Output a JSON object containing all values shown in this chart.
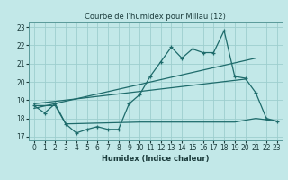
{
  "title": "Courbe de l'humidex pour Millau (12)",
  "xlabel": "Humidex (Indice chaleur)",
  "bg_color": "#c2e8e8",
  "grid_color": "#9ecece",
  "line_color": "#1e6b6b",
  "xlim": [
    -0.5,
    23.5
  ],
  "ylim": [
    16.8,
    23.3
  ],
  "yticks": [
    17,
    18,
    19,
    20,
    21,
    22,
    23
  ],
  "xticks": [
    0,
    1,
    2,
    3,
    4,
    5,
    6,
    7,
    8,
    9,
    10,
    11,
    12,
    13,
    14,
    15,
    16,
    17,
    18,
    19,
    20,
    21,
    22,
    23
  ],
  "main_line_x": [
    0,
    1,
    2,
    3,
    4,
    5,
    6,
    7,
    8,
    9,
    10,
    11,
    12,
    13,
    14,
    15,
    16,
    17,
    18,
    19,
    20,
    21,
    22,
    23
  ],
  "main_line_y": [
    18.7,
    18.3,
    18.8,
    17.7,
    17.2,
    17.4,
    17.55,
    17.4,
    17.4,
    18.8,
    19.3,
    20.3,
    21.1,
    21.9,
    21.3,
    21.8,
    21.6,
    21.6,
    22.8,
    20.3,
    20.2,
    19.4,
    18.0,
    17.85
  ],
  "trend1_x": [
    0,
    21
  ],
  "trend1_y": [
    18.55,
    21.3
  ],
  "trend2_x": [
    0,
    20
  ],
  "trend2_y": [
    18.8,
    20.15
  ],
  "flat_line_x": [
    0,
    2,
    3,
    10,
    19,
    21,
    23
  ],
  "flat_line_y": [
    18.7,
    18.7,
    17.7,
    17.8,
    17.8,
    18.0,
    17.85
  ]
}
